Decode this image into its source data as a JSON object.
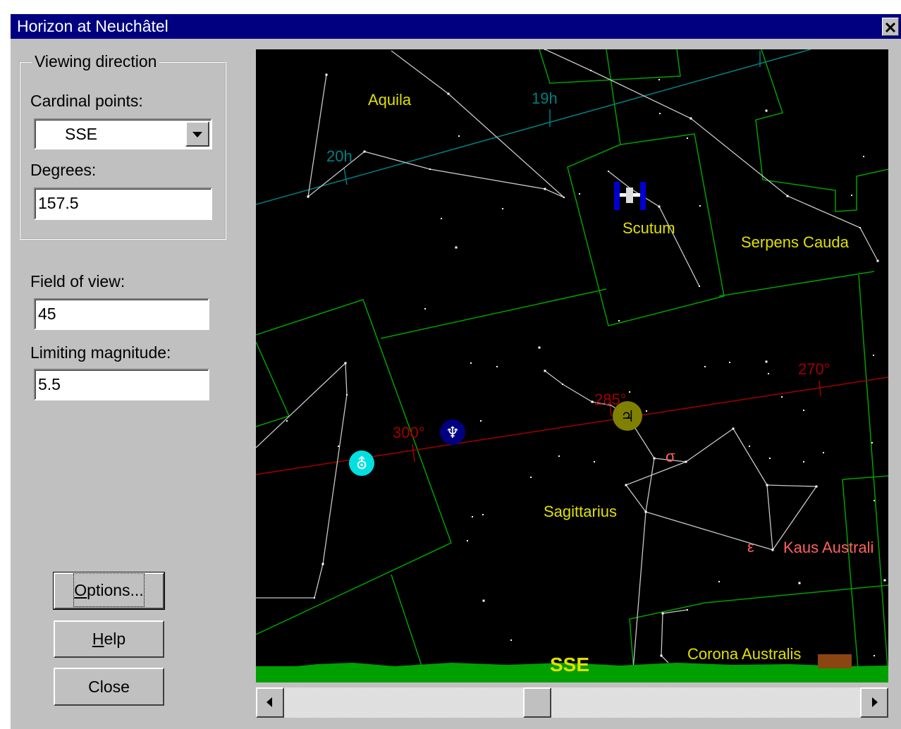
{
  "window": {
    "title": "Horizon at Neuchâtel"
  },
  "viewing_direction": {
    "legend": "Viewing direction",
    "cardinal_label": "Cardinal points:",
    "cardinal_value": "SSE",
    "degrees_label": "Degrees:",
    "degrees_value": "157.5"
  },
  "field_of_view": {
    "label": "Field of view:",
    "value": "45"
  },
  "limiting_magnitude": {
    "label": "Limiting magnitude:",
    "value": "5.5"
  },
  "buttons": [
    "Options...",
    "Help",
    "Close"
  ],
  "map": {
    "labels": {
      "aquila": "Aquila",
      "scutum": "Scutum",
      "serpens_cauda": "Serpens Cauda",
      "sagittarius": "Sagittarius",
      "corona_australis": "Corona Australis",
      "direction": "SSE",
      "ra_19h": "19h",
      "ra_20h": "20h",
      "ecl_270": "270°",
      "ecl_285": "285°",
      "ecl_300": "300°",
      "sigma": "σ",
      "epsilon": "ε",
      "kaus_australis": "Kaus Australi"
    },
    "planets": {
      "jupiter": "♃",
      "neptune": "♆",
      "uranus": "⛢"
    }
  }
}
